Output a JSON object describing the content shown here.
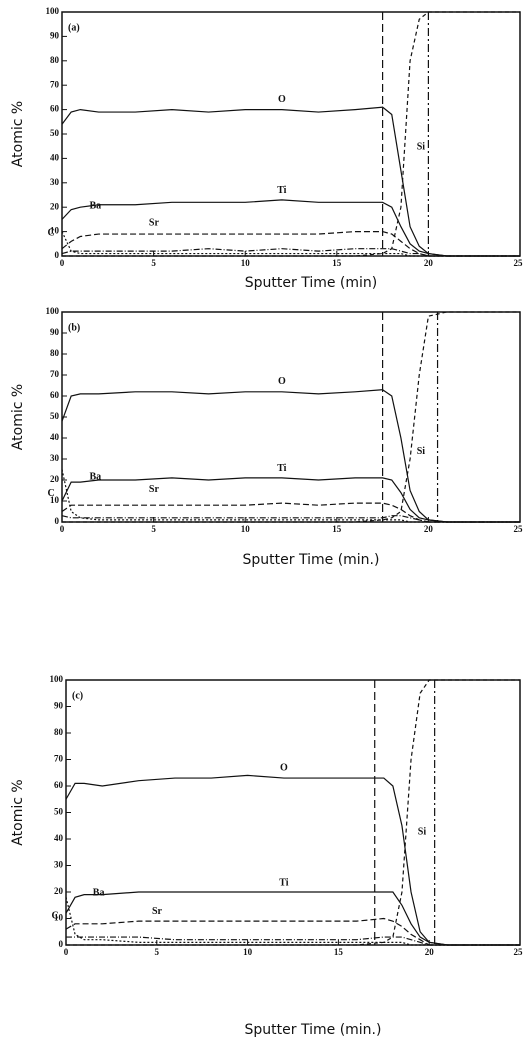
{
  "chart_data": [
    {
      "type": "line",
      "title": "(a)",
      "x_label": "Sputter Time (min)",
      "y_label": "Atomic %",
      "x": [
        0,
        0.5,
        1,
        2,
        4,
        6,
        8,
        10,
        12,
        14,
        16,
        17.5,
        18,
        18.5,
        19,
        19.5,
        20,
        21,
        23,
        25
      ],
      "xlim": [
        0,
        25
      ],
      "xticks": [
        0,
        5,
        10,
        15,
        20,
        25
      ],
      "ylim": [
        0,
        100
      ],
      "yticks": [
        0,
        10,
        20,
        30,
        40,
        50,
        60,
        70,
        80,
        90,
        100
      ],
      "vlines": [
        17.5,
        20
      ],
      "series": [
        {
          "name": "O",
          "color": "#111111",
          "values": [
            54,
            59,
            60,
            59,
            59,
            60,
            59,
            60,
            60,
            59,
            60,
            61,
            58,
            35,
            12,
            4,
            1,
            0,
            0,
            0
          ]
        },
        {
          "name": "Ti",
          "color": "#111111",
          "values": [
            15,
            19,
            20,
            21,
            21,
            22,
            22,
            22,
            23,
            22,
            22,
            22,
            20,
            12,
            5,
            2,
            1,
            0,
            0,
            0
          ]
        },
        {
          "name": "Ba",
          "color": "#111111",
          "values": [
            3,
            6,
            8,
            9,
            9,
            9,
            9,
            9,
            9,
            9,
            10,
            10,
            9,
            6,
            3,
            1,
            0,
            0,
            0,
            0
          ]
        },
        {
          "name": "Sr",
          "color": "#111111",
          "values": [
            1,
            2,
            2,
            2,
            2,
            2,
            3,
            2,
            3,
            2,
            3,
            3,
            3,
            2,
            1,
            1,
            0,
            0,
            0,
            0
          ]
        },
        {
          "name": "C",
          "color": "#111111",
          "values": [
            10,
            2,
            1,
            1,
            1,
            1,
            1,
            1,
            1,
            1,
            1,
            1,
            1,
            1,
            0,
            0,
            0,
            0,
            0,
            0
          ]
        },
        {
          "name": "Si",
          "color": "#111111",
          "values": [
            0,
            0,
            0,
            0,
            0,
            0,
            0,
            0,
            0,
            0,
            0,
            1,
            3,
            20,
            80,
            97,
            100,
            100,
            100,
            100
          ]
        }
      ]
    },
    {
      "type": "line",
      "title": "(b)",
      "x_label": "Sputter Time (min.)",
      "y_label": "Atomic %",
      "x": [
        0,
        0.5,
        1,
        2,
        4,
        6,
        8,
        10,
        12,
        14,
        16,
        17.5,
        18,
        18.5,
        19,
        19.5,
        20,
        21,
        23,
        25
      ],
      "xlim": [
        0,
        25
      ],
      "xticks": [
        0,
        5,
        10,
        15,
        20,
        25
      ],
      "ylim": [
        0,
        100
      ],
      "yticks": [
        0,
        10,
        20,
        30,
        40,
        50,
        60,
        70,
        80,
        90,
        100
      ],
      "vlines": [
        17.5,
        20.5
      ],
      "series": [
        {
          "name": "O",
          "color": "#111111",
          "values": [
            48,
            60,
            61,
            61,
            62,
            62,
            61,
            62,
            62,
            61,
            62,
            63,
            60,
            40,
            15,
            5,
            1,
            0,
            0,
            0
          ]
        },
        {
          "name": "Ti",
          "color": "#111111",
          "values": [
            10,
            19,
            19,
            20,
            20,
            21,
            20,
            21,
            21,
            20,
            21,
            21,
            20,
            14,
            6,
            2,
            1,
            0,
            0,
            0
          ]
        },
        {
          "name": "Ba",
          "color": "#111111",
          "values": [
            5,
            8,
            8,
            8,
            8,
            8,
            8,
            8,
            9,
            8,
            9,
            9,
            8,
            6,
            3,
            1,
            0,
            0,
            0,
            0
          ]
        },
        {
          "name": "Sr",
          "color": "#111111",
          "values": [
            3,
            2,
            2,
            2,
            2,
            2,
            2,
            2,
            2,
            2,
            2,
            2,
            3,
            3,
            2,
            1,
            0,
            0,
            0,
            0
          ]
        },
        {
          "name": "C",
          "color": "#111111",
          "values": [
            25,
            5,
            2,
            1,
            1,
            1,
            1,
            1,
            1,
            1,
            1,
            1,
            1,
            1,
            0,
            0,
            0,
            0,
            0,
            0
          ]
        },
        {
          "name": "Si",
          "color": "#111111",
          "values": [
            0,
            0,
            0,
            0,
            0,
            0,
            0,
            0,
            0,
            0,
            0,
            1,
            2,
            5,
            30,
            70,
            98,
            100,
            100,
            100
          ]
        }
      ]
    },
    {
      "type": "line",
      "title": "(c)",
      "x_label": "Sputter Time (min.)",
      "y_label": "Atomic %",
      "x": [
        0,
        0.5,
        1,
        2,
        4,
        6,
        8,
        10,
        12,
        14,
        16,
        17.5,
        18,
        18.5,
        19,
        19.5,
        20,
        21,
        23,
        25
      ],
      "xlim": [
        0,
        25
      ],
      "xticks": [
        0,
        5,
        10,
        15,
        20,
        25
      ],
      "ylim": [
        0,
        100
      ],
      "yticks": [
        0,
        10,
        20,
        30,
        40,
        50,
        60,
        70,
        80,
        90,
        100
      ],
      "vlines": [
        17,
        20.3
      ],
      "series": [
        {
          "name": "O",
          "color": "#111111",
          "values": [
            55,
            61,
            61,
            60,
            62,
            63,
            63,
            64,
            63,
            63,
            63,
            63,
            60,
            45,
            20,
            5,
            1,
            0,
            0,
            0
          ]
        },
        {
          "name": "Ti",
          "color": "#111111",
          "values": [
            12,
            18,
            19,
            19,
            20,
            20,
            20,
            20,
            20,
            20,
            20,
            20,
            20,
            15,
            8,
            3,
            1,
            0,
            0,
            0
          ]
        },
        {
          "name": "Ba",
          "color": "#111111",
          "values": [
            6,
            8,
            8,
            8,
            9,
            9,
            9,
            9,
            9,
            9,
            9,
            10,
            9,
            7,
            4,
            2,
            0,
            0,
            0,
            0
          ]
        },
        {
          "name": "Sr",
          "color": "#111111",
          "values": [
            3,
            3,
            3,
            3,
            3,
            2,
            2,
            2,
            2,
            2,
            2,
            3,
            3,
            3,
            2,
            1,
            0,
            0,
            0,
            0
          ]
        },
        {
          "name": "C",
          "color": "#111111",
          "values": [
            18,
            4,
            2,
            2,
            1,
            1,
            1,
            1,
            1,
            1,
            1,
            1,
            1,
            1,
            0,
            0,
            0,
            0,
            0,
            0
          ]
        },
        {
          "name": "Si",
          "color": "#111111",
          "values": [
            0,
            0,
            0,
            0,
            0,
            0,
            0,
            0,
            0,
            0,
            0,
            1,
            3,
            20,
            70,
            95,
            100,
            100,
            100,
            100
          ]
        }
      ]
    }
  ]
}
